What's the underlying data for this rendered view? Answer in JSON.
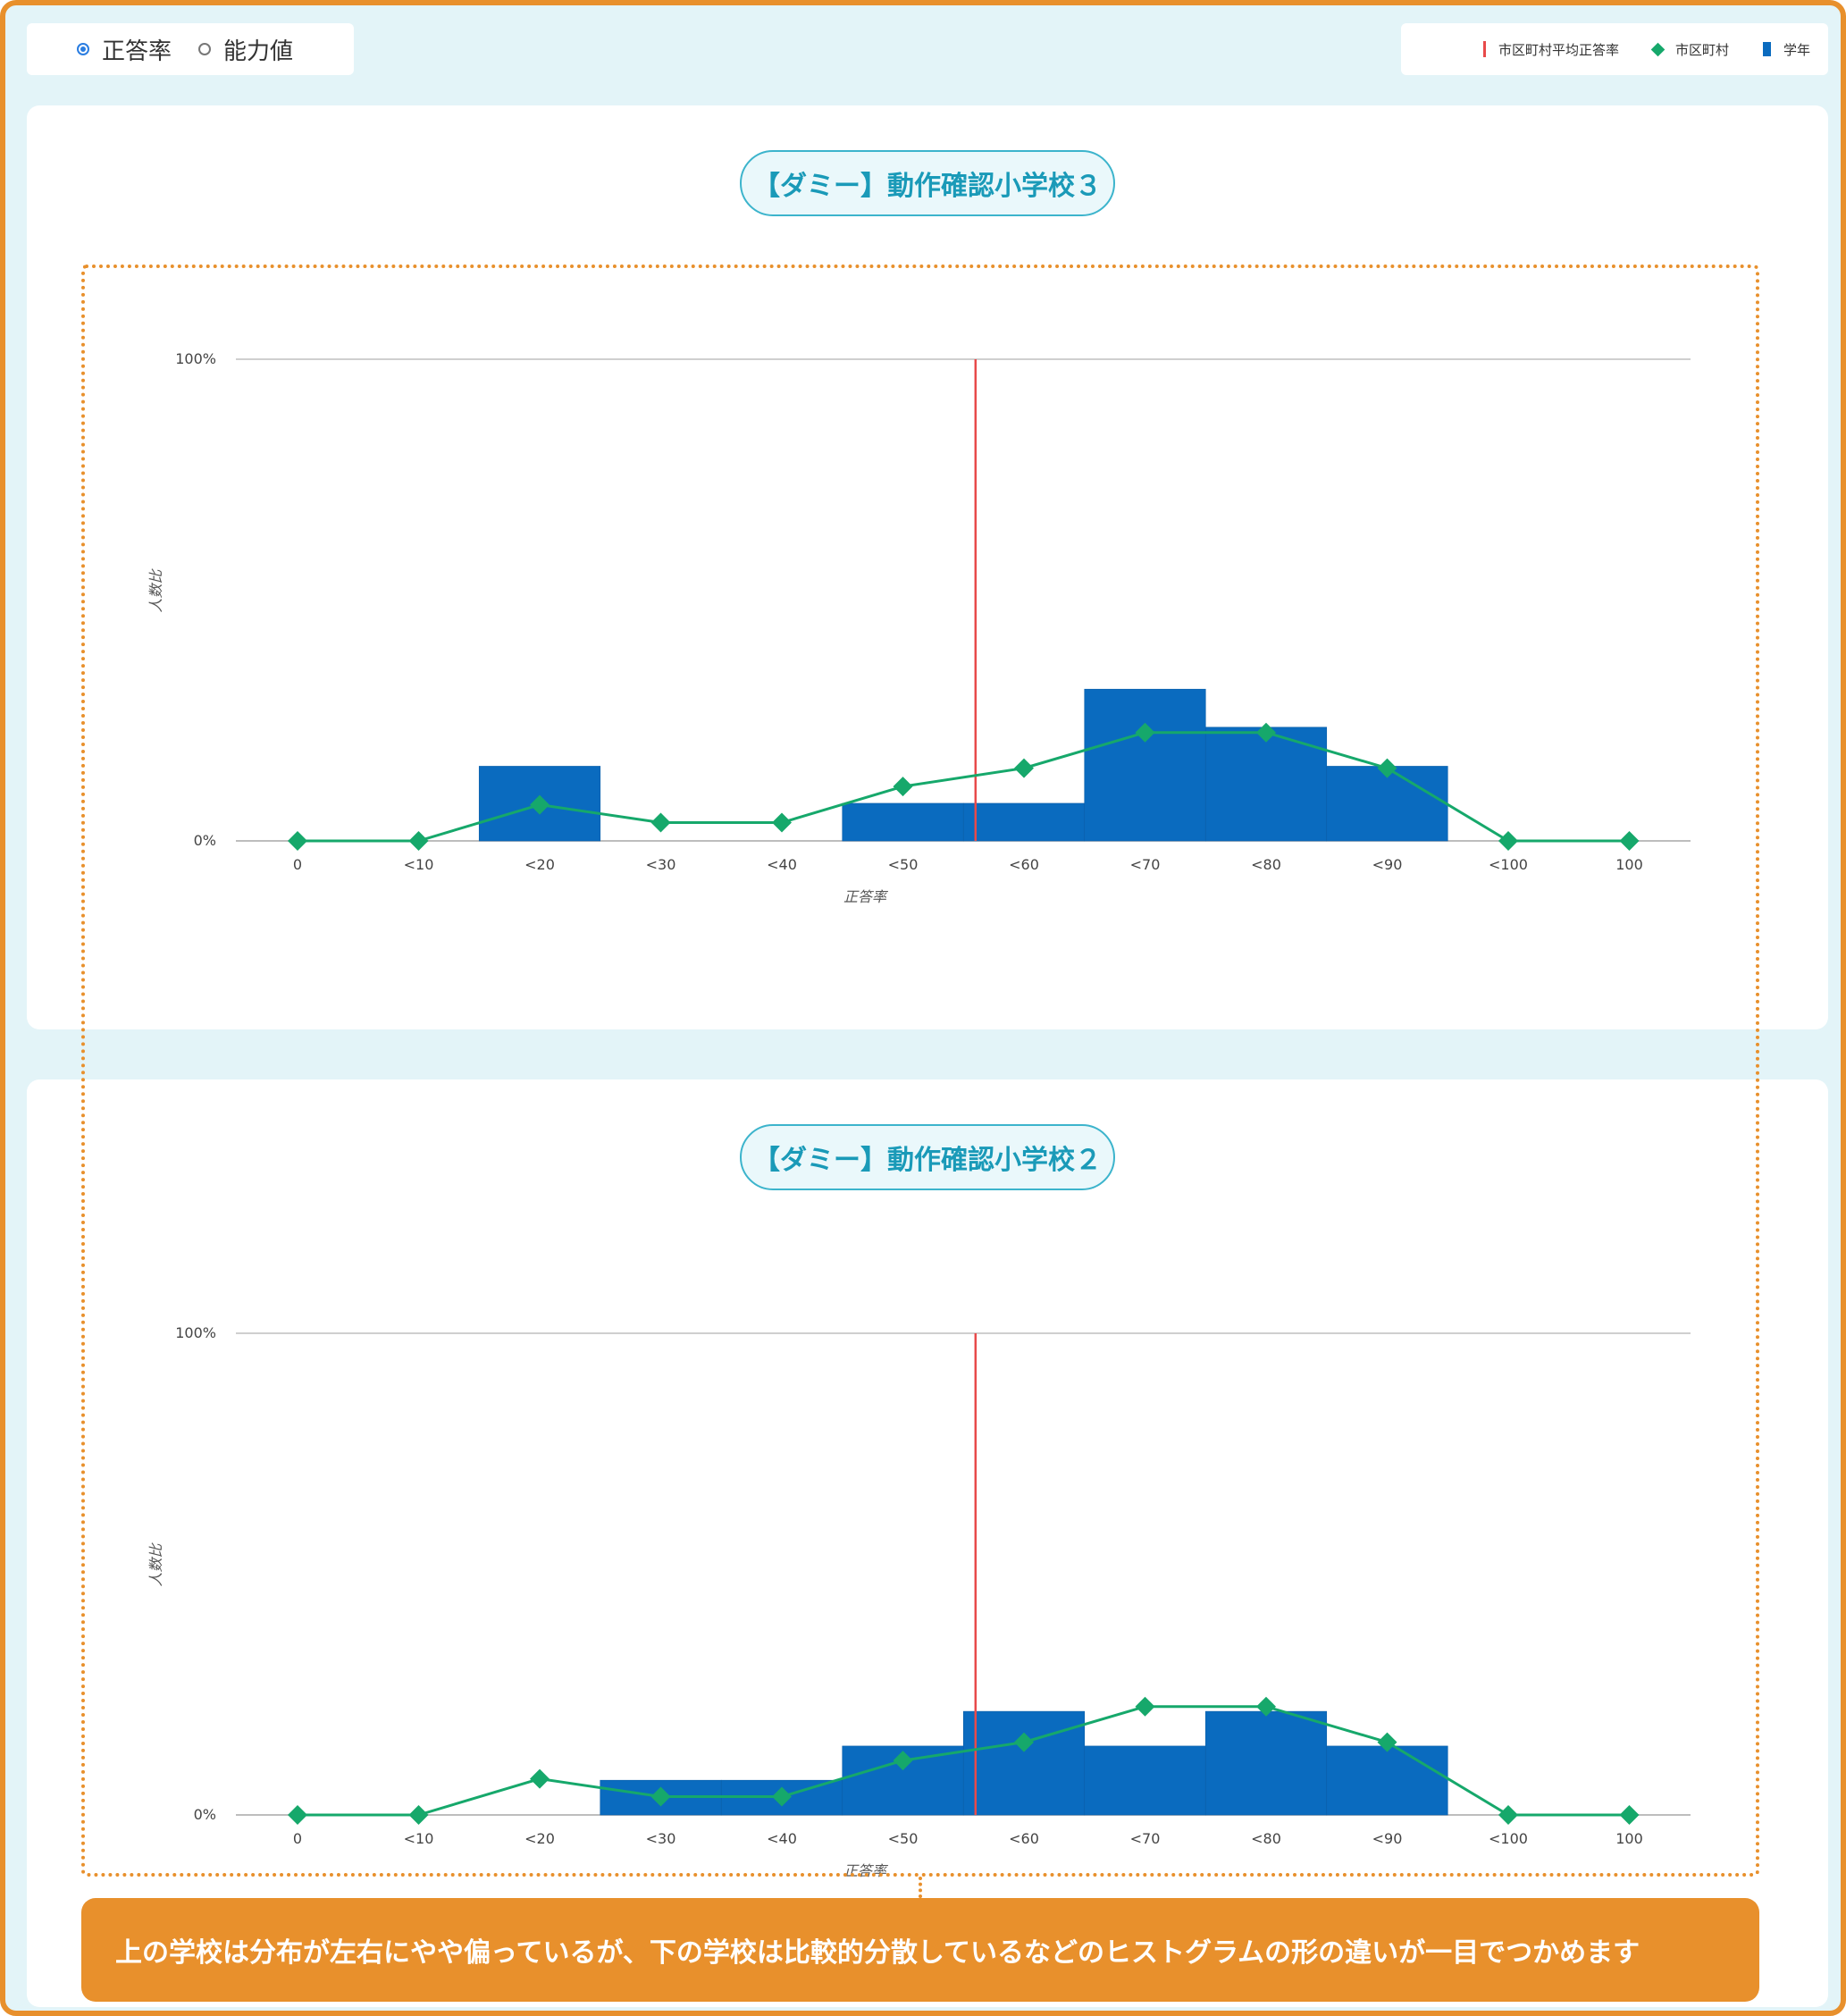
{
  "mode_toggle": {
    "options": [
      {
        "label": "正答率",
        "selected": true
      },
      {
        "label": "能力値",
        "selected": false
      }
    ]
  },
  "legend": {
    "items": [
      {
        "label": "市区町村平均正答率",
        "icon": "red-vertical-line",
        "color": "#e84a4a"
      },
      {
        "label": "市区町村",
        "icon": "green-diamond",
        "color": "#16a86b"
      },
      {
        "label": "学年",
        "icon": "blue-bar",
        "color": "#0a6bbf"
      }
    ]
  },
  "callout": {
    "text": "上の学校は分布が左右にやや偏っているが、下の学校は比較的分散しているなどのヒストグラムの形の違いが一目でつかめます"
  },
  "colors": {
    "bars": "#0a6bbf",
    "line": "#16a86b",
    "mean_line": "#e84a4a",
    "accent": "#e8902c",
    "title": "#1a9ab8"
  },
  "chart_data": [
    {
      "type": "bar",
      "title": "【ダミー】動作確認小学校３",
      "xlabel": "正答率",
      "ylabel": "人数比",
      "y_tick_labels": [
        "0%",
        "100%"
      ],
      "ylim": [
        0,
        100
      ],
      "x_tick_labels": [
        "0",
        "<10",
        "<20",
        "<30",
        "<40",
        "<50",
        "<60",
        "<70",
        "<80",
        "<90",
        "<100",
        "100"
      ],
      "grid": true,
      "series": [
        {
          "name": "学年",
          "type": "bar",
          "values": [
            0,
            0,
            15.5,
            0,
            0,
            7.8,
            7.8,
            31.5,
            23.6,
            15.5,
            0,
            0
          ]
        },
        {
          "name": "市区町村",
          "type": "line",
          "values": [
            0,
            0,
            7.5,
            3.8,
            3.8,
            11.3,
            15.1,
            22.5,
            22.5,
            15.1,
            0,
            0
          ]
        }
      ],
      "mean_marker": {
        "name": "市区町村平均正答率",
        "x": 56
      }
    },
    {
      "type": "bar",
      "title": "【ダミー】動作確認小学校２",
      "xlabel": "正答率",
      "ylabel": "人数比",
      "y_tick_labels": [
        "0%",
        "100%"
      ],
      "ylim": [
        0,
        100
      ],
      "x_tick_labels": [
        "0",
        "<10",
        "<20",
        "<30",
        "<40",
        "<50",
        "<60",
        "<70",
        "<80",
        "<90",
        "<100",
        "100"
      ],
      "grid": true,
      "series": [
        {
          "name": "学年",
          "type": "bar",
          "values": [
            0,
            0,
            0,
            7.2,
            7.2,
            14.3,
            21.5,
            14.3,
            21.5,
            14.3,
            0,
            0
          ]
        },
        {
          "name": "市区町村",
          "type": "line",
          "values": [
            0,
            0,
            7.5,
            3.8,
            3.8,
            11.3,
            15.1,
            22.5,
            22.5,
            15.1,
            0,
            0
          ]
        }
      ],
      "mean_marker": {
        "name": "市区町村平均正答率",
        "x": 56
      }
    }
  ]
}
